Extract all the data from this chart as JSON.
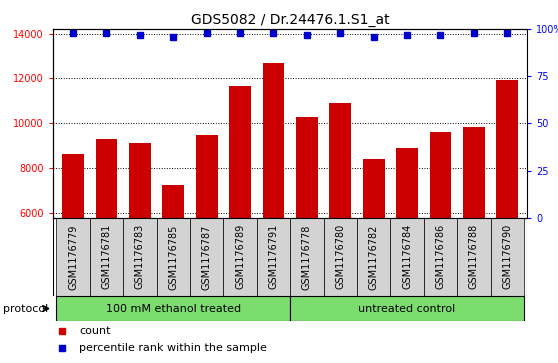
{
  "title": "GDS5082 / Dr.24476.1.S1_at",
  "samples": [
    "GSM1176779",
    "GSM1176781",
    "GSM1176783",
    "GSM1176785",
    "GSM1176787",
    "GSM1176789",
    "GSM1176791",
    "GSM1176778",
    "GSM1176780",
    "GSM1176782",
    "GSM1176784",
    "GSM1176786",
    "GSM1176788",
    "GSM1176790"
  ],
  "counts": [
    8650,
    9300,
    9150,
    7250,
    9500,
    11650,
    12700,
    10300,
    10900,
    8400,
    8900,
    9600,
    9850,
    11950
  ],
  "percentiles": [
    98,
    98,
    97,
    96,
    98,
    98,
    98,
    97,
    98,
    96,
    97,
    97,
    98,
    98
  ],
  "bar_color": "#cc0000",
  "dot_color": "#0000cc",
  "ylim_left": [
    5800,
    14200
  ],
  "ylim_right": [
    0,
    100
  ],
  "yticks_left": [
    6000,
    8000,
    10000,
    12000,
    14000
  ],
  "yticks_right": [
    0,
    25,
    50,
    75,
    100
  ],
  "title_fontsize": 10,
  "tick_fontsize": 7,
  "label_fontsize": 8,
  "protocol_label": "protocol",
  "group_labels": [
    "100 mM ethanol treated",
    "untreated control"
  ],
  "group_split": 7,
  "legend_count": "count",
  "legend_percentile": "percentile rank within the sample",
  "green_color": "#7CDD6F"
}
